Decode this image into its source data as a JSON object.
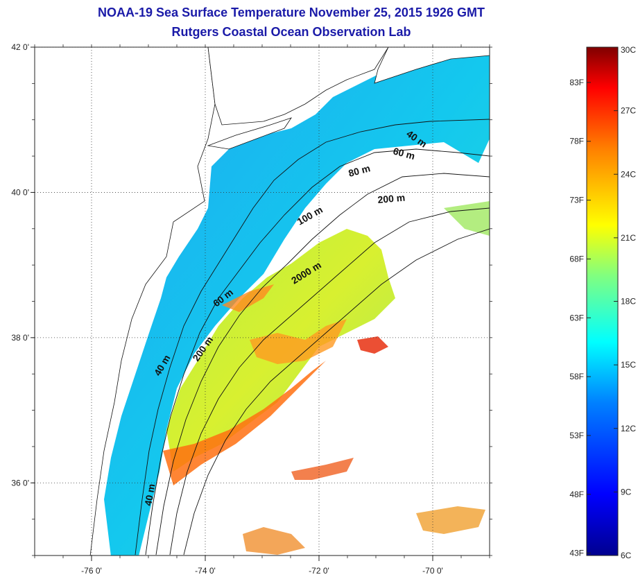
{
  "title_line1": "NOAA-19 Sea Surface Temperature November 25, 2015 1926 GMT",
  "title_line2": "Rutgers Coastal Ocean Observation Lab",
  "map": {
    "lon_ticks": [
      {
        "value": -76,
        "label": "-76 0'"
      },
      {
        "value": -74,
        "label": "-74 0'"
      },
      {
        "value": -72,
        "label": "-72 0'"
      },
      {
        "value": -70,
        "label": "-70 0'"
      }
    ],
    "lat_ticks": [
      {
        "value": 42,
        "label": "42 0'"
      },
      {
        "value": 40,
        "label": "40 0'"
      },
      {
        "value": 38,
        "label": "38 0'"
      },
      {
        "value": 36,
        "label": "36 0'"
      }
    ],
    "lon_range": [
      -77.0,
      -69.0
    ],
    "lat_range": [
      35.0,
      42.0
    ],
    "gridlines": "dotted",
    "contour_labels": [
      "40 m",
      "60 m",
      "80 m",
      "200 m",
      "100 m",
      "2000 m",
      "60 m",
      "200 m",
      "40 m",
      "40 m"
    ]
  },
  "colorbar": {
    "min_c": 6,
    "max_c": 30,
    "celsius_labels": [
      {
        "c": 30,
        "label": "30C"
      },
      {
        "c": 27,
        "label": "27C"
      },
      {
        "c": 24,
        "label": "24C"
      },
      {
        "c": 21,
        "label": "21C"
      },
      {
        "c": 18,
        "label": "18C"
      },
      {
        "c": 15,
        "label": "15C"
      },
      {
        "c": 12,
        "label": "12C"
      },
      {
        "c": 9,
        "label": "9C"
      },
      {
        "c": 6,
        "label": "6C"
      }
    ],
    "fahrenheit_labels": [
      {
        "f": 83,
        "label": "83F"
      },
      {
        "f": 78,
        "label": "78F"
      },
      {
        "f": 73,
        "label": "73F"
      },
      {
        "f": 68,
        "label": "68F"
      },
      {
        "f": 63,
        "label": "63F"
      },
      {
        "f": 58,
        "label": "58F"
      },
      {
        "f": 53,
        "label": "53F"
      },
      {
        "f": 48,
        "label": "48F"
      },
      {
        "f": 43,
        "label": "43F"
      }
    ],
    "stops": [
      "#00008f",
      "#0000ff",
      "#0080ff",
      "#00ffff",
      "#80ff80",
      "#ffff00",
      "#ff8000",
      "#ff0000",
      "#800000"
    ]
  }
}
